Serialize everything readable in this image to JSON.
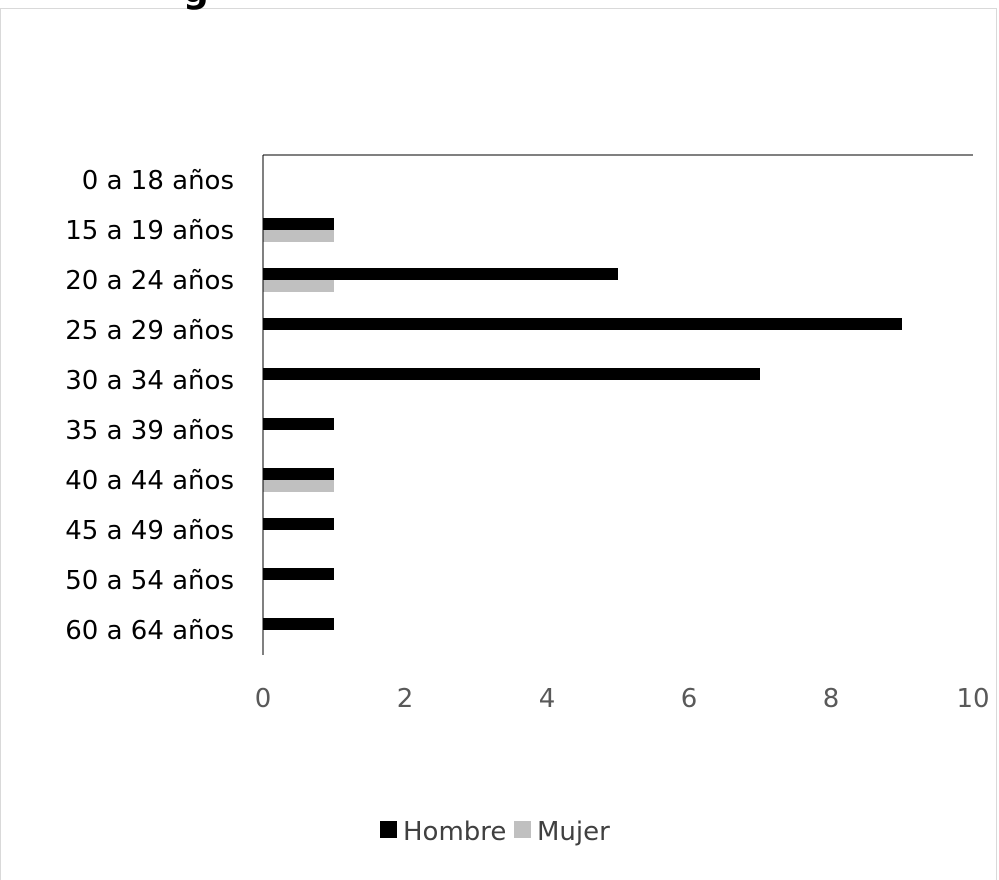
{
  "chart_data": {
    "type": "bar",
    "orientation": "horizontal",
    "title": "",
    "categories": [
      "0 a 18 años",
      "15 a 19 años",
      "20 a 24 años",
      "25 a 29 años",
      "30 a 34 años",
      "35 a 39 años",
      "40 a 44 años",
      "45 a 49 años",
      "50 a 54 años",
      "60 a 64 años"
    ],
    "series": [
      {
        "name": "Hombre",
        "values": [
          0,
          1,
          5,
          9,
          7,
          1,
          1,
          1,
          1,
          1
        ],
        "color": "#000000"
      },
      {
        "name": "Mujer",
        "values": [
          0,
          1,
          1,
          0,
          0,
          0,
          1,
          0,
          0,
          0
        ],
        "color": "#c0c0c0"
      }
    ],
    "xticks": [
      "0",
      "2",
      "4",
      "6",
      "8",
      "10"
    ],
    "xlim": [
      0,
      10
    ],
    "xlabel": "",
    "ylabel": "",
    "grid": false,
    "legend_position": "bottom"
  },
  "title_fragment": "g"
}
